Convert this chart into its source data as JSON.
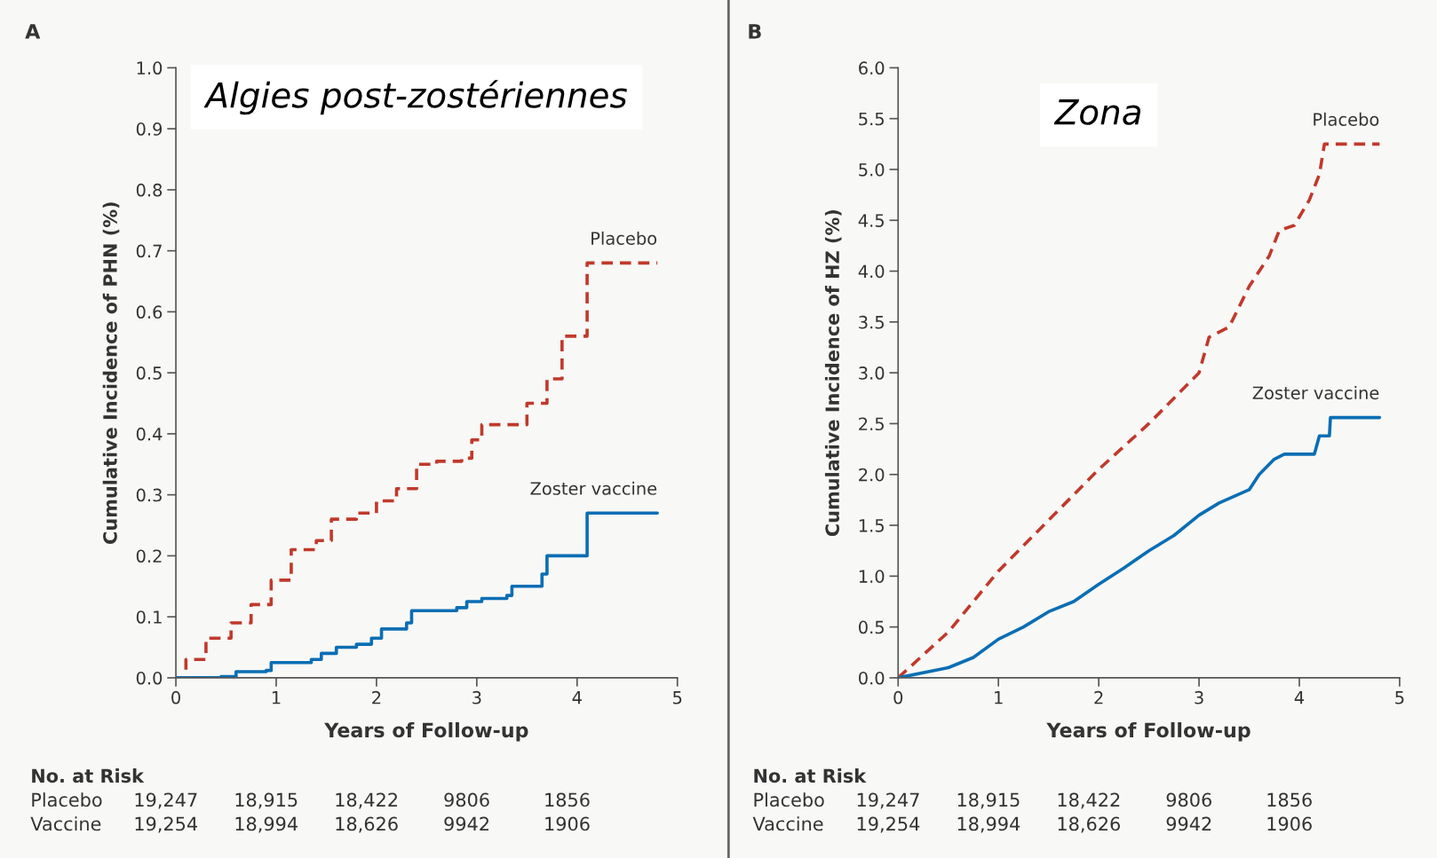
{
  "chart_data": [
    {
      "type": "step",
      "title": "Algies post-zostériennes",
      "xlabel": "Years of Follow-up",
      "ylabel": "Cumulative Incidence of PHN (%)",
      "xlim": [
        0,
        5
      ],
      "xticks": [
        0,
        1,
        2,
        3,
        4,
        5
      ],
      "ylim": [
        0,
        1.0
      ],
      "yticks": [
        {
          "value": 0,
          "label": "0.0"
        },
        {
          "value": 0.1,
          "label": "0.1"
        },
        {
          "value": 0.2,
          "label": "0.2"
        },
        {
          "value": 0.3,
          "label": "0.3"
        },
        {
          "value": 0.4,
          "label": "0.4"
        },
        {
          "value": 0.5,
          "label": "0.5"
        },
        {
          "value": 0.6,
          "label": "0.6"
        },
        {
          "value": 0.7,
          "label": "0.7"
        },
        {
          "value": 0.8,
          "label": "0.8"
        },
        {
          "value": 0.9,
          "label": "0.9"
        },
        {
          "value": 1.0,
          "label": "1.0"
        }
      ],
      "grid": false,
      "legend": false,
      "series": [
        {
          "name": "Placebo",
          "color": "#c0392b",
          "line_style": "dashed",
          "x": [
            0,
            0.1,
            0.3,
            0.55,
            0.75,
            0.95,
            1.15,
            1.4,
            1.55,
            1.8,
            2.0,
            2.2,
            2.4,
            2.6,
            2.85,
            2.95,
            3.05,
            3.4,
            3.5,
            3.65,
            3.7,
            3.85,
            3.95,
            4.1,
            4.8
          ],
          "values": [
            0,
            0.03,
            0.065,
            0.09,
            0.12,
            0.16,
            0.21,
            0.225,
            0.26,
            0.27,
            0.29,
            0.31,
            0.35,
            0.355,
            0.36,
            0.39,
            0.415,
            0.415,
            0.45,
            0.45,
            0.49,
            0.56,
            0.56,
            0.68,
            0.68
          ]
        },
        {
          "name": "Zoster vaccine",
          "color": "#0a6eb4",
          "line_style": "solid",
          "x": [
            0,
            0.45,
            0.6,
            0.9,
            0.95,
            1.35,
            1.45,
            1.6,
            1.8,
            1.95,
            2.05,
            2.3,
            2.35,
            2.8,
            2.9,
            3.05,
            3.3,
            3.35,
            3.6,
            3.65,
            3.7,
            4.05,
            4.1,
            4.8
          ],
          "values": [
            0,
            0.002,
            0.01,
            0.012,
            0.025,
            0.03,
            0.04,
            0.05,
            0.055,
            0.065,
            0.08,
            0.09,
            0.11,
            0.115,
            0.125,
            0.13,
            0.135,
            0.15,
            0.15,
            0.17,
            0.2,
            0.2,
            0.27,
            0.27
          ]
        }
      ],
      "annotations": [
        "A",
        "No. at Risk",
        "Placebo",
        "19,247",
        "18,915",
        "18,422",
        "9806",
        "1856",
        "Vaccine",
        "19,254",
        "18,994",
        "18,626",
        "9942",
        "1906"
      ]
    },
    {
      "type": "line",
      "title": "Zona",
      "xlabel": "Years of Follow-up",
      "ylabel": "Cumulative Incidence of HZ (%)",
      "xlim": [
        0,
        5
      ],
      "xticks": [
        0,
        1,
        2,
        3,
        4,
        5
      ],
      "ylim": [
        0,
        6.0
      ],
      "yticks": [
        {
          "value": 0,
          "label": "0.0"
        },
        {
          "value": 0.5,
          "label": "0.5"
        },
        {
          "value": 1.0,
          "label": "1.0"
        },
        {
          "value": 1.5,
          "label": "1.5"
        },
        {
          "value": 2.0,
          "label": "2.0"
        },
        {
          "value": 2.5,
          "label": "2.5"
        },
        {
          "value": 3.0,
          "label": "3.0"
        },
        {
          "value": 3.5,
          "label": "3.5"
        },
        {
          "value": 4.0,
          "label": "4.0"
        },
        {
          "value": 4.5,
          "label": "4.5"
        },
        {
          "value": 5.0,
          "label": "5.0"
        },
        {
          "value": 5.5,
          "label": "5.5"
        },
        {
          "value": 6.0,
          "label": "6.0"
        }
      ],
      "grid": false,
      "legend": false,
      "series": [
        {
          "name": "Placebo",
          "color": "#c0392b",
          "line_style": "dashed",
          "x": [
            0,
            0.5,
            1,
            1.5,
            2,
            2.5,
            3,
            3.1,
            3.3,
            3.5,
            3.7,
            3.8,
            3.95,
            4.1,
            4.2,
            4.25,
            4.8
          ],
          "values": [
            0,
            0.45,
            1.05,
            1.55,
            2.05,
            2.5,
            3.0,
            3.35,
            3.45,
            3.85,
            4.15,
            4.4,
            4.45,
            4.7,
            4.95,
            5.25,
            5.25
          ]
        },
        {
          "name": "Zoster vaccine",
          "color": "#0a6eb4",
          "line_style": "solid",
          "x": [
            0,
            0.5,
            0.75,
            1,
            1.25,
            1.5,
            1.75,
            2,
            2.25,
            2.5,
            2.75,
            3,
            3.2,
            3.5,
            3.6,
            3.75,
            3.85,
            4.15,
            4.2,
            4.3,
            4.31,
            4.8
          ],
          "values": [
            0,
            0.1,
            0.2,
            0.38,
            0.5,
            0.65,
            0.75,
            0.92,
            1.08,
            1.25,
            1.4,
            1.6,
            1.72,
            1.85,
            2.0,
            2.15,
            2.2,
            2.2,
            2.38,
            2.38,
            2.56,
            2.56
          ]
        }
      ],
      "annotations": [
        "B",
        "No. at Risk",
        "Placebo",
        "19,247",
        "18,915",
        "18,422",
        "9806",
        "1856",
        "Vaccine",
        "19,254",
        "18,994",
        "18,626",
        "9942",
        "1906"
      ]
    }
  ]
}
